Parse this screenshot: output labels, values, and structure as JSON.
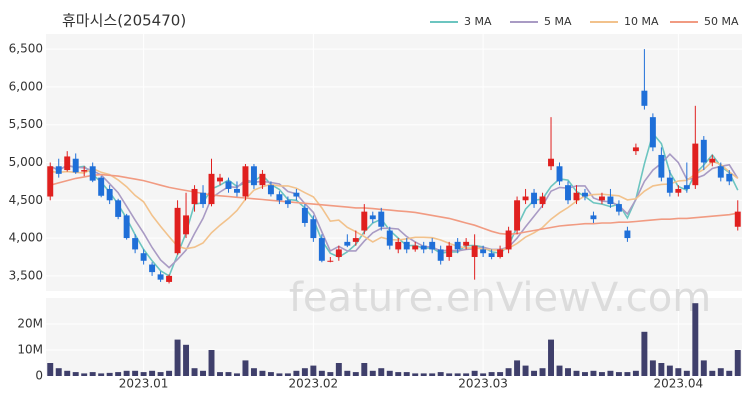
{
  "chart_data": {
    "type": "candlestick",
    "title": "휴마시스(205470)",
    "watermark": "feature.enViewV.com",
    "up_color": "#e0201f",
    "down_color": "#1f6fd8",
    "legend": "top-right",
    "grid": true,
    "categories": [
      null,
      null,
      null,
      null,
      null,
      null,
      null,
      null,
      null,
      null,
      null,
      "2023.01",
      null,
      null,
      null,
      null,
      null,
      null,
      null,
      null,
      null,
      null,
      null,
      null,
      null,
      null,
      null,
      null,
      null,
      null,
      null,
      "2023.02",
      null,
      null,
      null,
      null,
      null,
      null,
      null,
      null,
      null,
      null,
      null,
      null,
      null,
      null,
      null,
      null,
      null,
      null,
      null,
      "2023.03",
      null,
      null,
      null,
      null,
      null,
      null,
      null,
      null,
      null,
      null,
      null,
      null,
      null,
      null,
      null,
      null,
      null,
      null,
      null,
      null,
      null,
      null,
      "2023.04",
      null,
      null,
      null,
      null,
      null,
      null,
      null
    ],
    "open": [
      4550,
      4950,
      4900,
      5050,
      4880,
      4950,
      4800,
      4650,
      4500,
      4300,
      4000,
      3800,
      3650,
      3520,
      3420,
      3800,
      4050,
      4450,
      4600,
      4450,
      4750,
      4750,
      4650,
      4550,
      4950,
      4700,
      4700,
      4580,
      4500,
      4600,
      4400,
      4250,
      4000,
      3700,
      3750,
      3950,
      3950,
      4100,
      4300,
      4350,
      4100,
      3850,
      3950,
      3850,
      3900,
      3950,
      3850,
      3750,
      3950,
      3900,
      3750,
      3850,
      3800,
      3750,
      3850,
      4100,
      4500,
      4600,
      4450,
      4950,
      4950,
      4700,
      4500,
      4600,
      4300,
      4500,
      4550,
      4450,
      4100,
      5150,
      5950,
      5600,
      5100,
      4800,
      4600,
      4700,
      4700,
      5300,
      5000,
      4950,
      4850,
      4150
    ],
    "high": [
      5000,
      5050,
      5150,
      5120,
      4950,
      5000,
      4820,
      4700,
      4520,
      4320,
      4050,
      3850,
      3680,
      3560,
      3520,
      4500,
      4600,
      4700,
      4700,
      5050,
      4850,
      4800,
      4750,
      4980,
      4980,
      4900,
      4750,
      4620,
      4550,
      4650,
      4450,
      4300,
      4050,
      3750,
      3900,
      4050,
      4100,
      4450,
      4350,
      4400,
      4150,
      4000,
      4000,
      3950,
      3950,
      4000,
      3900,
      3950,
      4000,
      4000,
      4050,
      3900,
      3850,
      3900,
      4150,
      4550,
      4650,
      4650,
      4600,
      5600,
      5000,
      4750,
      4700,
      4650,
      4350,
      4600,
      4650,
      4500,
      4150,
      5250,
      6500,
      5650,
      5200,
      4900,
      4700,
      5000,
      5750,
      5350,
      5100,
      5000,
      4900,
      4500
    ],
    "low": [
      4500,
      4800,
      4880,
      4850,
      4820,
      4740,
      4540,
      4450,
      4250,
      3980,
      3800,
      3650,
      3500,
      3420,
      3400,
      3780,
      4000,
      4350,
      4400,
      4420,
      4700,
      4600,
      4550,
      4500,
      4650,
      4650,
      4550,
      4450,
      4400,
      4500,
      4150,
      3950,
      3680,
      3680,
      3700,
      3880,
      3900,
      4050,
      4200,
      4100,
      3850,
      3800,
      3800,
      3820,
      3800,
      3800,
      3650,
      3700,
      3800,
      3850,
      3450,
      3750,
      3720,
      3730,
      3800,
      4050,
      4450,
      4400,
      4400,
      4900,
      4700,
      4450,
      4450,
      4500,
      4200,
      4450,
      4400,
      4300,
      3950,
      5100,
      5700,
      5150,
      4750,
      4550,
      4550,
      4600,
      4650,
      4900,
      4950,
      4750,
      4700,
      4100
    ],
    "close": [
      4950,
      4850,
      5080,
      4870,
      4900,
      4760,
      4560,
      4500,
      4280,
      4000,
      3850,
      3700,
      3550,
      3450,
      3500,
      4400,
      4300,
      4650,
      4450,
      4850,
      4800,
      4650,
      4600,
      4950,
      4700,
      4850,
      4580,
      4500,
      4450,
      4550,
      4200,
      4000,
      3700,
      3700,
      3850,
      3900,
      4000,
      4350,
      4250,
      4150,
      3900,
      3950,
      3850,
      3900,
      3850,
      3850,
      3700,
      3900,
      3850,
      3950,
      3900,
      3800,
      3750,
      3850,
      4100,
      4500,
      4550,
      4450,
      4550,
      5050,
      4750,
      4500,
      4600,
      4550,
      4250,
      4550,
      4450,
      4350,
      4000,
      5200,
      5750,
      5200,
      4800,
      4600,
      4650,
      4650,
      5250,
      5000,
      5050,
      4800,
      4750,
      4350
    ],
    "series": [
      {
        "name": "3 MA",
        "color": "#6cc5c0",
        "values": [
          4950,
          4900,
          4960,
          4933,
          4950,
          4843,
          4740,
          4607,
          4447,
          4260,
          4043,
          3850,
          3700,
          3567,
          3500,
          3783,
          4067,
          4450,
          4467,
          4650,
          4700,
          4767,
          4683,
          4733,
          4750,
          4833,
          4710,
          4643,
          4510,
          4500,
          4400,
          4250,
          3967,
          3800,
          3750,
          3817,
          3917,
          4083,
          4200,
          4250,
          4100,
          4000,
          3900,
          3900,
          3867,
          3867,
          3800,
          3817,
          3817,
          3900,
          3900,
          3883,
          3817,
          3800,
          3900,
          4150,
          4383,
          4500,
          4517,
          4683,
          4783,
          4767,
          4617,
          4550,
          4467,
          4450,
          4417,
          4450,
          4267,
          4517,
          4983,
          5383,
          5250,
          4867,
          4683,
          4633,
          4850,
          4967,
          5100,
          4950,
          4867,
          4633
        ]
      },
      {
        "name": "5 MA",
        "color": "#a99bc4",
        "values": [
          4950,
          4900,
          4960,
          4938,
          4930,
          4892,
          4834,
          4718,
          4600,
          4420,
          4238,
          4066,
          3876,
          3710,
          3610,
          3720,
          3840,
          4060,
          4260,
          4530,
          4610,
          4680,
          4670,
          4770,
          4740,
          4750,
          4736,
          4716,
          4616,
          4586,
          4456,
          4340,
          4080,
          3830,
          3890,
          3830,
          3830,
          3960,
          4070,
          4130,
          4130,
          4120,
          4020,
          3950,
          3890,
          3880,
          3830,
          3840,
          3830,
          3850,
          3860,
          3880,
          3850,
          3850,
          3880,
          4000,
          4150,
          4290,
          4430,
          4620,
          4670,
          4660,
          4690,
          4690,
          4530,
          4490,
          4480,
          4430,
          4320,
          4510,
          4750,
          4900,
          4990,
          5110,
          5000,
          4780,
          4790,
          4830,
          4920,
          4950,
          4970,
          4790
        ]
      },
      {
        "name": "10 MA",
        "color": "#f2c28c",
        "values": [
          4880,
          4870,
          4880,
          4870,
          4860,
          4920,
          4870,
          4840,
          4770,
          4680,
          4565,
          4480,
          4300,
          4155,
          4020,
          3890,
          3860,
          3880,
          3935,
          4070,
          4170,
          4260,
          4365,
          4515,
          4635,
          4680,
          4710,
          4690,
          4690,
          4660,
          4600,
          4545,
          4398,
          4223,
          4238,
          4143,
          4085,
          4020,
          3950,
          4010,
          3980,
          3975,
          3990,
          4010,
          4010,
          4005,
          3975,
          3930,
          3890,
          3870,
          3870,
          3855,
          3845,
          3840,
          3865,
          3930,
          4015,
          4070,
          4140,
          4250,
          4335,
          4405,
          4490,
          4560,
          4575,
          4580,
          4570,
          4560,
          4505,
          4520,
          4620,
          4690,
          4710,
          4715,
          4755,
          4765,
          4845,
          4910,
          5015,
          4975,
          4875,
          4790
        ]
      },
      {
        "name": "50 MA",
        "color": "#f19b82",
        "values": [
          4700,
          4730,
          4760,
          4790,
          4810,
          4830,
          4840,
          4830,
          4820,
          4800,
          4780,
          4760,
          4730,
          4700,
          4670,
          4650,
          4630,
          4610,
          4590,
          4570,
          4560,
          4550,
          4540,
          4530,
          4520,
          4510,
          4500,
          4490,
          4480,
          4470,
          4460,
          4450,
          4440,
          4430,
          4420,
          4410,
          4400,
          4400,
          4390,
          4380,
          4370,
          4360,
          4350,
          4340,
          4320,
          4300,
          4280,
          4260,
          4230,
          4200,
          4170,
          4130,
          4090,
          4060,
          4050,
          4060,
          4080,
          4100,
          4120,
          4140,
          4160,
          4170,
          4180,
          4190,
          4190,
          4200,
          4200,
          4210,
          4210,
          4220,
          4230,
          4240,
          4250,
          4250,
          4260,
          4260,
          4270,
          4280,
          4290,
          4300,
          4310,
          4330
        ]
      }
    ],
    "ylim": [
      3300,
      6700
    ],
    "yticks": [
      {
        "value": 3500,
        "label": "3,500"
      },
      {
        "value": 4000,
        "label": "4,000"
      },
      {
        "value": 4500,
        "label": "4,500"
      },
      {
        "value": 5000,
        "label": "5,000"
      },
      {
        "value": 5500,
        "label": "5,500"
      },
      {
        "value": 6000,
        "label": "6,000"
      },
      {
        "value": 6500,
        "label": "6,500"
      }
    ],
    "volume": {
      "color": "#3f3f6b",
      "ylim": [
        0,
        30000000
      ],
      "yticks": [
        0,
        {
          "value": 10000000,
          "label": "10M"
        },
        {
          "value": 20000000,
          "label": "20M"
        }
      ],
      "values": [
        5000000,
        3000000,
        2000000,
        1500000,
        1000000,
        1500000,
        1000000,
        1200000,
        1500000,
        2000000,
        2000000,
        1500000,
        2000000,
        1500000,
        2000000,
        14000000,
        12000000,
        3000000,
        2000000,
        10000000,
        1500000,
        1500000,
        1000000,
        6000000,
        3000000,
        2000000,
        1500000,
        1000000,
        1000000,
        2000000,
        3000000,
        4000000,
        2000000,
        1500000,
        5000000,
        2000000,
        1500000,
        5000000,
        2000000,
        3000000,
        2000000,
        1500000,
        1500000,
        1000000,
        1000000,
        1000000,
        1500000,
        1000000,
        1000000,
        1000000,
        2000000,
        1000000,
        1500000,
        1500000,
        3000000,
        6000000,
        4000000,
        2000000,
        3000000,
        14000000,
        4000000,
        3000000,
        2000000,
        1500000,
        2000000,
        1500000,
        2000000,
        1500000,
        1500000,
        2000000,
        17000000,
        6000000,
        5000000,
        4000000,
        3000000,
        2000000,
        28000000,
        6000000,
        2000000,
        3000000,
        2000000,
        10000000
      ]
    }
  }
}
